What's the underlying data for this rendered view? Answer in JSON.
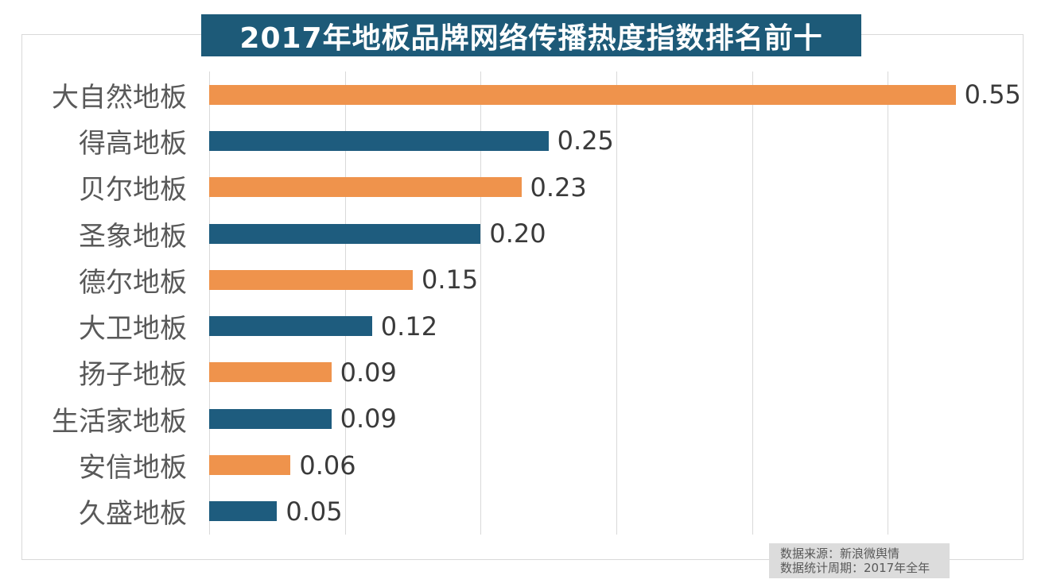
{
  "chart_data": {
    "type": "bar",
    "orientation": "horizontal",
    "title": "2017年地板品牌网络传播热度指数排名前十",
    "categories": [
      "大自然地板",
      "得高地板",
      "贝尔地板",
      "圣象地板",
      "德尔地板",
      "大卫地板",
      "扬子地板",
      "生活家地板",
      "安信地板",
      "久盛地板"
    ],
    "values": [
      0.55,
      0.25,
      0.23,
      0.2,
      0.15,
      0.12,
      0.09,
      0.09,
      0.06,
      0.05
    ],
    "value_labels": [
      "0.55",
      "0.25",
      "0.23",
      "0.20",
      "0.15",
      "0.12",
      "0.09",
      "0.09",
      "0.06",
      "0.05"
    ],
    "xlabel": "",
    "ylabel": "",
    "xlim": [
      0,
      0.6
    ],
    "grid_interval": 0.1,
    "gridline_count": 7,
    "grid_on": true,
    "legend": "none",
    "colors": {
      "bar_alternating": [
        "#ef934c",
        "#1e5c7e"
      ],
      "title_bg": "#1d5a78",
      "title_text": "#ffffff",
      "gridline": "#d9d9d9",
      "frame_border": "#d9d9d9",
      "category_label": "#595959",
      "value_label": "#3a3a3a",
      "source_bg": "#dcdcdc",
      "source_text": "#595959"
    }
  },
  "source": {
    "line1": "数据来源：新浪微舆情",
    "line2": "数据统计周期：2017年全年"
  }
}
